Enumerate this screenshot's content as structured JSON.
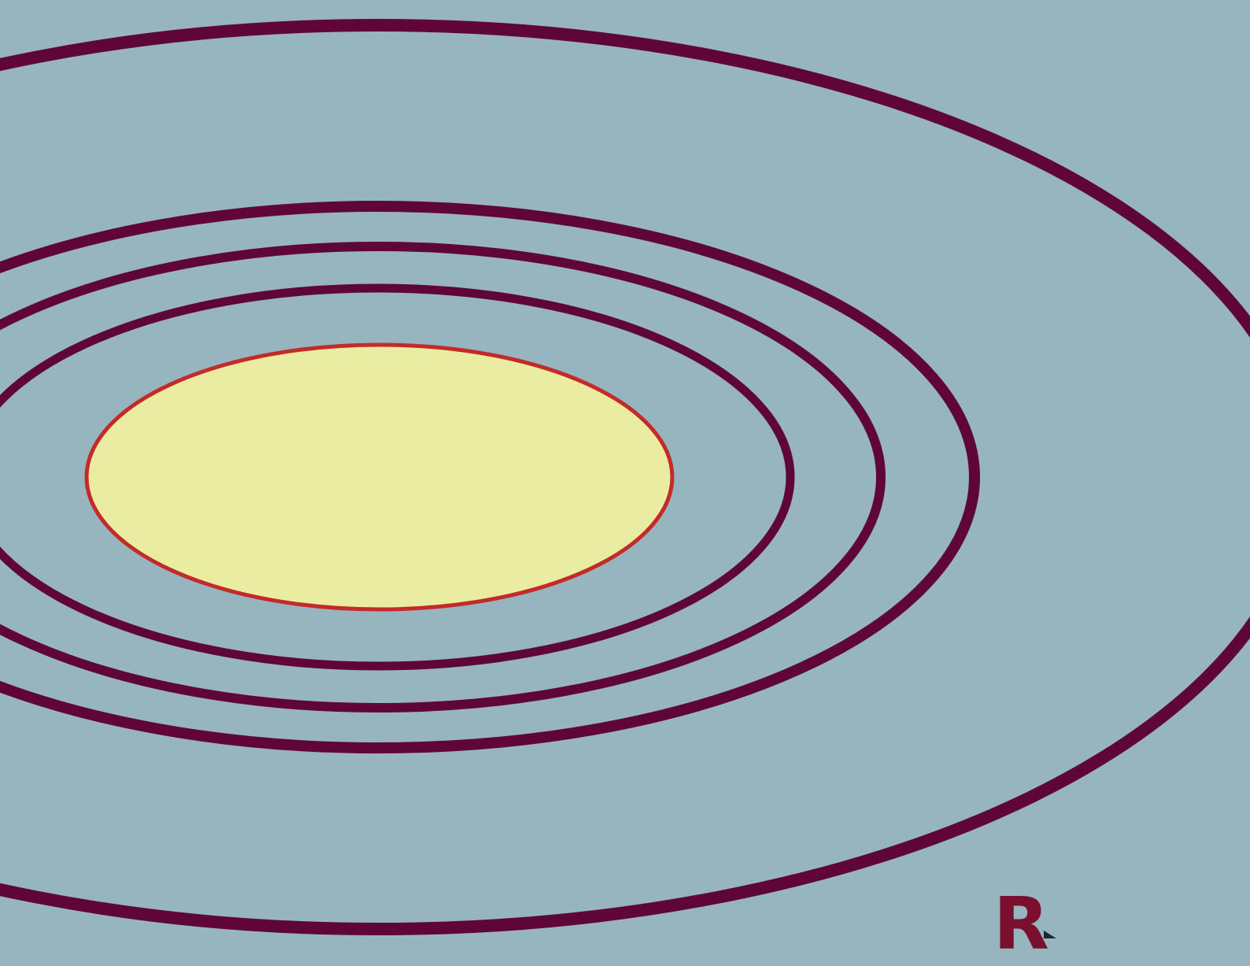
{
  "colors": {
    "background": "#96b5bf",
    "ring": "#5f0538",
    "core_fill": "#eaeca2",
    "core_stroke": "#c42a2a",
    "label": "#7a0f2f",
    "pointer": "#1a2a2a"
  },
  "label": {
    "text": "R"
  },
  "rings": [
    "outer-ring",
    "ring-3",
    "ring-2",
    "ring-1",
    "core-ellipse"
  ]
}
